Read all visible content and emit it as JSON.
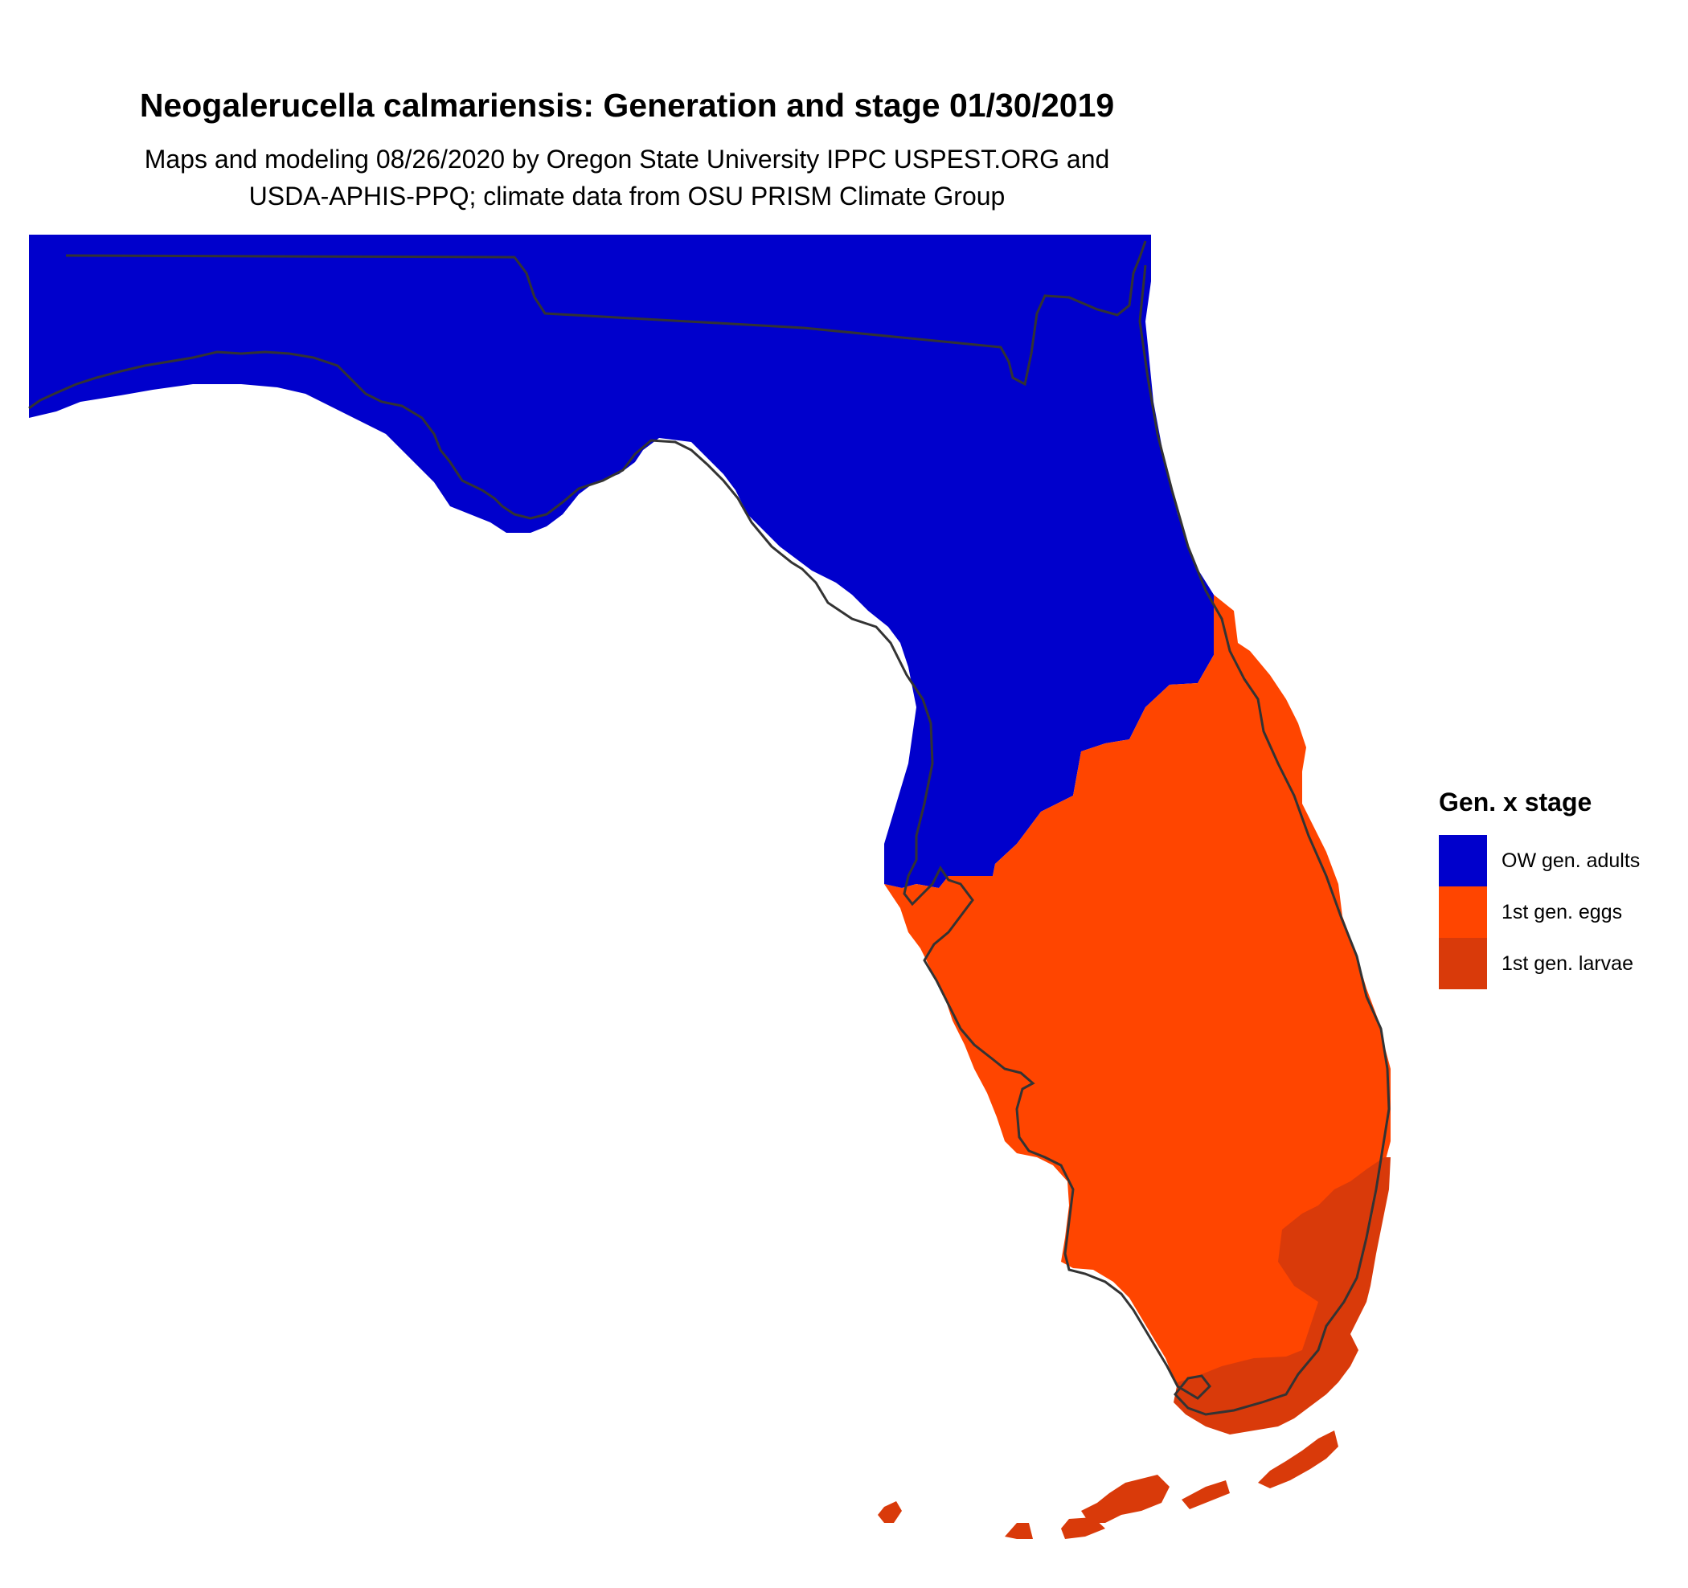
{
  "title": "Neogalerucella calmariensis: Generation and stage 01/30/2019",
  "subtitle_line1": "Maps and modeling 08/26/2020 by Oregon State University IPPC USPEST.ORG and",
  "subtitle_line2": "USDA-APHIS-PPQ; climate data from OSU PRISM Climate Group",
  "legend": {
    "title": "Gen. x stage",
    "items": [
      {
        "label": "OW gen. adults",
        "color": "#0000CC"
      },
      {
        "label": "1st gen. eggs",
        "color": "#FF4500"
      },
      {
        "label": "1st gen. larvae",
        "color": "#D93A0A"
      }
    ]
  },
  "map": {
    "region": "Florida",
    "colors": {
      "adults": "#0000CC",
      "eggs": "#FF4500",
      "larvae": "#D93A0A",
      "outline": "#333333"
    }
  }
}
